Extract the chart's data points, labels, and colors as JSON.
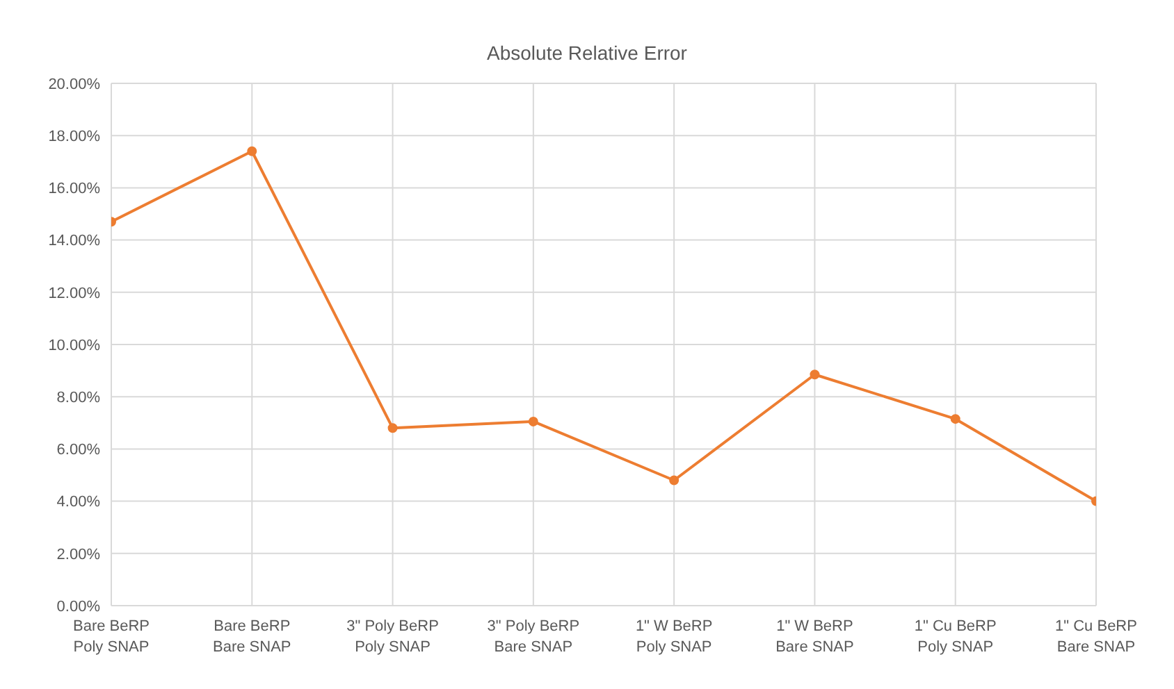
{
  "chart_data": {
    "type": "line",
    "title": "Absolute Relative Error",
    "categories": [
      "Bare BeRP\nPoly SNAP",
      "Bare BeRP\nBare SNAP",
      "3\" Poly BeRP\nPoly SNAP",
      "3\" Poly BeRP\nBare SNAP",
      "1\" W BeRP\nPoly SNAP",
      "1\" W BeRP\nBare SNAP",
      "1\" Cu BeRP\nPoly SNAP",
      "1\" Cu BeRP\nBare SNAP"
    ],
    "series": [
      {
        "color": "#ed7d31",
        "values": [
          14.7,
          17.4,
          6.8,
          7.05,
          4.8,
          8.85,
          7.15,
          4.0
        ]
      }
    ],
    "ylim": [
      0,
      20
    ],
    "yticks": [
      {
        "value": 0,
        "label": "0.00%"
      },
      {
        "value": 2,
        "label": "2.00%"
      },
      {
        "value": 4,
        "label": "4.00%"
      },
      {
        "value": 6,
        "label": "6.00%"
      },
      {
        "value": 8,
        "label": "8.00%"
      },
      {
        "value": 10,
        "label": "10.00%"
      },
      {
        "value": 12,
        "label": "12.00%"
      },
      {
        "value": 14,
        "label": "14.00%"
      },
      {
        "value": 16,
        "label": "16.00%"
      },
      {
        "value": 18,
        "label": "18.00%"
      },
      {
        "value": 20,
        "label": "20.00%"
      }
    ],
    "grid": true,
    "marker": "circle",
    "line_style": "solid",
    "legend": false
  }
}
